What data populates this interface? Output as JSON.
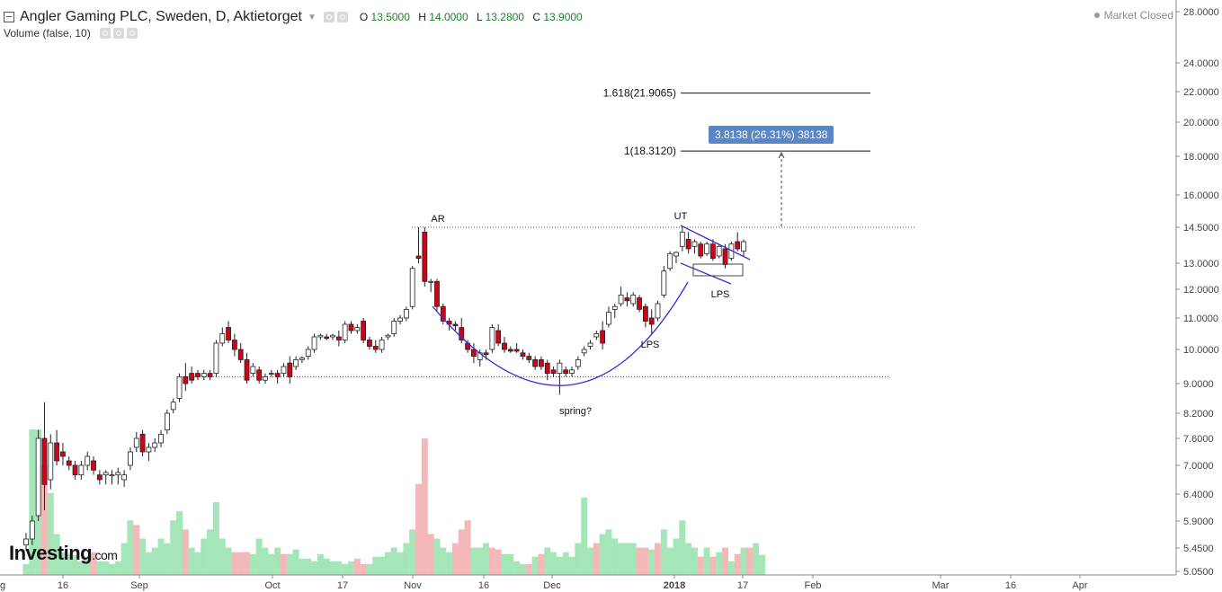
{
  "header": {
    "title": "Angler Gaming PLC, Sweden, D, Aktietorget",
    "ohlc": [
      {
        "label": "O",
        "value": "13.5000"
      },
      {
        "label": "H",
        "value": "14.0000"
      },
      {
        "label": "L",
        "value": "13.2800"
      },
      {
        "label": "C",
        "value": "13.9000"
      }
    ],
    "volume_label": "Volume (false, 10)",
    "status": "Market Closed"
  },
  "logo": {
    "name": "Investing",
    "suffix": ".com"
  },
  "colors": {
    "up": "#ffffff",
    "down": "#d0021b",
    "up_volume": "#a5e6b8",
    "down_volume": "#f5b8b8",
    "curve": "#3d2bd6",
    "badge": "#5b86c5"
  },
  "chart_data": {
    "type": "candlestick",
    "y_ticks": [
      "28.0000",
      "24.0000",
      "22.0000",
      "20.0000",
      "18.0000",
      "16.0000",
      "14.5000",
      "13.0000",
      "12.0000",
      "11.0000",
      "10.0000",
      "9.0000",
      "8.2000",
      "7.6000",
      "7.0000",
      "6.4000",
      "5.9000",
      "5.4500",
      "5.0500"
    ],
    "x_ticks": [
      "16",
      "Sep",
      "Oct",
      "17",
      "Nov",
      "16",
      "Dec",
      "2018",
      "17",
      "Feb",
      "Mar",
      "16",
      "Apr"
    ],
    "x_tick_label_first": "g",
    "candles": [
      {
        "o": 5.5,
        "h": 5.7,
        "l": 5.4,
        "c": 5.6
      },
      {
        "o": 5.6,
        "h": 6.0,
        "l": 5.5,
        "c": 5.9
      },
      {
        "o": 6.0,
        "h": 7.8,
        "l": 5.9,
        "c": 7.6
      },
      {
        "o": 7.6,
        "h": 8.5,
        "l": 6.1,
        "c": 6.6
      },
      {
        "o": 6.7,
        "h": 7.7,
        "l": 6.5,
        "c": 7.5
      },
      {
        "o": 7.5,
        "h": 7.8,
        "l": 7.0,
        "c": 7.1
      },
      {
        "o": 7.3,
        "h": 7.5,
        "l": 7.0,
        "c": 7.2
      },
      {
        "o": 7.1,
        "h": 7.2,
        "l": 6.9,
        "c": 7.0
      },
      {
        "o": 7.0,
        "h": 7.1,
        "l": 6.7,
        "c": 6.8
      },
      {
        "o": 6.8,
        "h": 7.1,
        "l": 6.7,
        "c": 7.0
      },
      {
        "o": 7.0,
        "h": 7.3,
        "l": 6.9,
        "c": 7.2
      },
      {
        "o": 7.1,
        "h": 7.2,
        "l": 6.8,
        "c": 6.9
      },
      {
        "o": 6.8,
        "h": 6.9,
        "l": 6.6,
        "c": 6.7
      },
      {
        "o": 6.8,
        "h": 6.9,
        "l": 6.6,
        "c": 6.85
      },
      {
        "o": 6.8,
        "h": 6.9,
        "l": 6.6,
        "c": 6.8
      },
      {
        "o": 6.8,
        "h": 6.95,
        "l": 6.6,
        "c": 6.85
      },
      {
        "o": 6.7,
        "h": 6.9,
        "l": 6.55,
        "c": 6.8
      },
      {
        "o": 7.0,
        "h": 7.4,
        "l": 6.9,
        "c": 7.3
      },
      {
        "o": 7.4,
        "h": 7.75,
        "l": 7.3,
        "c": 7.6
      },
      {
        "o": 7.7,
        "h": 7.8,
        "l": 7.2,
        "c": 7.3
      },
      {
        "o": 7.3,
        "h": 7.5,
        "l": 7.1,
        "c": 7.4
      },
      {
        "o": 7.4,
        "h": 7.6,
        "l": 7.3,
        "c": 7.5
      },
      {
        "o": 7.5,
        "h": 7.8,
        "l": 7.4,
        "c": 7.7
      },
      {
        "o": 7.8,
        "h": 8.3,
        "l": 7.7,
        "c": 8.2
      },
      {
        "o": 8.3,
        "h": 8.6,
        "l": 8.2,
        "c": 8.5
      },
      {
        "o": 8.6,
        "h": 9.3,
        "l": 8.5,
        "c": 9.2
      },
      {
        "o": 9.2,
        "h": 9.6,
        "l": 8.8,
        "c": 9.0
      },
      {
        "o": 9.3,
        "h": 9.5,
        "l": 9.0,
        "c": 9.1
      },
      {
        "o": 9.3,
        "h": 9.4,
        "l": 9.1,
        "c": 9.2
      },
      {
        "o": 9.2,
        "h": 9.4,
        "l": 9.1,
        "c": 9.3
      },
      {
        "o": 9.3,
        "h": 9.4,
        "l": 9.1,
        "c": 9.2
      },
      {
        "o": 9.3,
        "h": 10.3,
        "l": 9.2,
        "c": 10.2
      },
      {
        "o": 10.2,
        "h": 10.7,
        "l": 10.1,
        "c": 10.5
      },
      {
        "o": 10.7,
        "h": 10.9,
        "l": 10.2,
        "c": 10.3
      },
      {
        "o": 10.3,
        "h": 10.5,
        "l": 9.8,
        "c": 10.0
      },
      {
        "o": 10.0,
        "h": 10.2,
        "l": 9.6,
        "c": 9.7
      },
      {
        "o": 9.7,
        "h": 9.9,
        "l": 9.0,
        "c": 9.1
      },
      {
        "o": 9.3,
        "h": 9.6,
        "l": 9.2,
        "c": 9.5
      },
      {
        "o": 9.4,
        "h": 9.5,
        "l": 9.0,
        "c": 9.1
      },
      {
        "o": 9.1,
        "h": 9.3,
        "l": 9.0,
        "c": 9.2
      },
      {
        "o": 9.3,
        "h": 9.4,
        "l": 9.2,
        "c": 9.3
      },
      {
        "o": 9.3,
        "h": 9.4,
        "l": 9.0,
        "c": 9.2
      },
      {
        "o": 9.3,
        "h": 9.6,
        "l": 9.2,
        "c": 9.5
      },
      {
        "o": 9.6,
        "h": 9.8,
        "l": 9.0,
        "c": 9.2
      },
      {
        "o": 9.5,
        "h": 9.8,
        "l": 9.4,
        "c": 9.7
      },
      {
        "o": 9.7,
        "h": 9.8,
        "l": 9.6,
        "c": 9.75
      },
      {
        "o": 9.8,
        "h": 10.1,
        "l": 9.7,
        "c": 10.0
      },
      {
        "o": 10.0,
        "h": 10.5,
        "l": 9.9,
        "c": 10.4
      },
      {
        "o": 10.4,
        "h": 10.5,
        "l": 10.3,
        "c": 10.45
      },
      {
        "o": 10.4,
        "h": 10.5,
        "l": 10.3,
        "c": 10.35
      },
      {
        "o": 10.4,
        "h": 10.5,
        "l": 10.3,
        "c": 10.45
      },
      {
        "o": 10.4,
        "h": 10.6,
        "l": 10.1,
        "c": 10.3
      },
      {
        "o": 10.3,
        "h": 10.9,
        "l": 10.2,
        "c": 10.8
      },
      {
        "o": 10.8,
        "h": 10.9,
        "l": 10.5,
        "c": 10.6
      },
      {
        "o": 10.6,
        "h": 10.8,
        "l": 10.5,
        "c": 10.7
      },
      {
        "o": 10.9,
        "h": 11.0,
        "l": 10.2,
        "c": 10.3
      },
      {
        "o": 10.3,
        "h": 10.4,
        "l": 10.0,
        "c": 10.1
      },
      {
        "o": 10.1,
        "h": 10.3,
        "l": 9.9,
        "c": 10.0
      },
      {
        "o": 10.0,
        "h": 10.4,
        "l": 9.9,
        "c": 10.3
      },
      {
        "o": 10.4,
        "h": 10.5,
        "l": 10.3,
        "c": 10.45
      },
      {
        "o": 10.5,
        "h": 11.0,
        "l": 10.4,
        "c": 10.9
      },
      {
        "o": 10.9,
        "h": 11.1,
        "l": 10.8,
        "c": 11.0
      },
      {
        "o": 11.0,
        "h": 11.4,
        "l": 10.9,
        "c": 11.3
      },
      {
        "o": 11.4,
        "h": 12.9,
        "l": 11.3,
        "c": 12.8
      },
      {
        "o": 13.3,
        "h": 14.5,
        "l": 13.0,
        "c": 13.2
      },
      {
        "o": 14.3,
        "h": 14.5,
        "l": 12.1,
        "c": 12.3
      },
      {
        "o": 12.3,
        "h": 12.4,
        "l": 11.9,
        "c": 12.3
      },
      {
        "o": 12.3,
        "h": 12.4,
        "l": 11.2,
        "c": 11.4
      },
      {
        "o": 11.4,
        "h": 11.5,
        "l": 10.8,
        "c": 10.9
      },
      {
        "o": 10.9,
        "h": 11.0,
        "l": 10.6,
        "c": 10.8
      },
      {
        "o": 10.8,
        "h": 10.9,
        "l": 10.6,
        "c": 10.75
      },
      {
        "o": 10.7,
        "h": 11.0,
        "l": 10.2,
        "c": 10.3
      },
      {
        "o": 10.2,
        "h": 10.3,
        "l": 9.9,
        "c": 10.0
      },
      {
        "o": 10.0,
        "h": 10.2,
        "l": 9.6,
        "c": 9.8
      },
      {
        "o": 9.7,
        "h": 10.0,
        "l": 9.5,
        "c": 9.9
      },
      {
        "o": 9.9,
        "h": 10.0,
        "l": 9.7,
        "c": 9.85
      },
      {
        "o": 10.0,
        "h": 10.8,
        "l": 9.9,
        "c": 10.7
      },
      {
        "o": 10.6,
        "h": 10.8,
        "l": 10.1,
        "c": 10.2
      },
      {
        "o": 10.2,
        "h": 10.4,
        "l": 9.9,
        "c": 10.0
      },
      {
        "o": 10.0,
        "h": 10.1,
        "l": 9.9,
        "c": 9.95
      },
      {
        "o": 10.0,
        "h": 10.2,
        "l": 9.9,
        "c": 9.95
      },
      {
        "o": 9.9,
        "h": 10.0,
        "l": 9.7,
        "c": 9.8
      },
      {
        "o": 9.8,
        "h": 9.9,
        "l": 9.6,
        "c": 9.7
      },
      {
        "o": 9.7,
        "h": 9.8,
        "l": 9.4,
        "c": 9.5
      },
      {
        "o": 9.7,
        "h": 9.8,
        "l": 9.4,
        "c": 9.5
      },
      {
        "o": 9.6,
        "h": 9.7,
        "l": 9.1,
        "c": 9.3
      },
      {
        "o": 9.4,
        "h": 9.5,
        "l": 9.2,
        "c": 9.3
      },
      {
        "o": 9.3,
        "h": 9.7,
        "l": 8.7,
        "c": 9.6
      },
      {
        "o": 9.4,
        "h": 9.5,
        "l": 9.2,
        "c": 9.3
      },
      {
        "o": 9.3,
        "h": 9.5,
        "l": 9.2,
        "c": 9.4
      },
      {
        "o": 9.5,
        "h": 9.8,
        "l": 9.4,
        "c": 9.7
      },
      {
        "o": 9.9,
        "h": 10.1,
        "l": 9.8,
        "c": 10.0
      },
      {
        "o": 10.1,
        "h": 10.3,
        "l": 10.0,
        "c": 10.2
      },
      {
        "o": 10.4,
        "h": 10.6,
        "l": 10.3,
        "c": 10.5
      },
      {
        "o": 10.6,
        "h": 10.9,
        "l": 10.0,
        "c": 10.2
      },
      {
        "o": 10.8,
        "h": 11.4,
        "l": 10.7,
        "c": 11.2
      },
      {
        "o": 11.3,
        "h": 11.5,
        "l": 11.0,
        "c": 11.4
      },
      {
        "o": 11.5,
        "h": 12.1,
        "l": 11.4,
        "c": 11.8
      },
      {
        "o": 11.7,
        "h": 11.9,
        "l": 11.4,
        "c": 11.6
      },
      {
        "o": 11.5,
        "h": 11.9,
        "l": 11.4,
        "c": 11.8
      },
      {
        "o": 11.7,
        "h": 11.8,
        "l": 11.2,
        "c": 11.3
      },
      {
        "o": 11.4,
        "h": 11.5,
        "l": 10.7,
        "c": 10.9
      },
      {
        "o": 11.0,
        "h": 11.3,
        "l": 10.5,
        "c": 10.8
      },
      {
        "o": 11.0,
        "h": 11.6,
        "l": 10.9,
        "c": 11.5
      },
      {
        "o": 11.8,
        "h": 12.9,
        "l": 11.7,
        "c": 12.7
      },
      {
        "o": 12.8,
        "h": 13.5,
        "l": 12.7,
        "c": 13.4
      },
      {
        "o": 13.3,
        "h": 13.5,
        "l": 13.0,
        "c": 13.45
      },
      {
        "o": 13.7,
        "h": 14.5,
        "l": 13.5,
        "c": 14.3
      },
      {
        "o": 14.0,
        "h": 14.3,
        "l": 13.4,
        "c": 13.6
      },
      {
        "o": 13.7,
        "h": 14.0,
        "l": 13.4,
        "c": 13.9
      },
      {
        "o": 13.8,
        "h": 13.9,
        "l": 13.2,
        "c": 13.3
      },
      {
        "o": 13.4,
        "h": 13.9,
        "l": 13.3,
        "c": 13.8
      },
      {
        "o": 13.8,
        "h": 14.0,
        "l": 13.1,
        "c": 13.2
      },
      {
        "o": 13.3,
        "h": 13.8,
        "l": 13.2,
        "c": 13.7
      },
      {
        "o": 13.6,
        "h": 13.8,
        "l": 12.8,
        "c": 12.95
      },
      {
        "o": 13.2,
        "h": 13.9,
        "l": 13.1,
        "c": 13.8
      },
      {
        "o": 13.9,
        "h": 14.3,
        "l": 13.5,
        "c": 13.6
      },
      {
        "o": 13.5,
        "h": 14.0,
        "l": 13.28,
        "c": 13.9
      }
    ],
    "volumes": [
      1.2,
      16,
      16,
      12,
      9,
      4.5,
      2.5,
      2.3,
      2.2,
      1.5,
      2,
      2.5,
      1.5,
      1.5,
      1.2,
      1.5,
      3.5,
      6,
      5.5,
      4,
      2.5,
      3,
      4,
      3.5,
      6,
      7,
      5,
      3,
      2.5,
      4,
      5,
      8,
      4,
      3,
      2.5,
      2.5,
      2.5,
      2.3,
      4,
      3,
      2.3,
      3,
      2.3,
      2.3,
      2.8,
      1.8,
      1.8,
      1.5,
      2.3,
      1.8,
      1.5,
      1.5,
      1.2,
      1.5,
      1.8,
      1.2,
      1.2,
      2,
      2,
      2.5,
      3,
      2.5,
      3.5,
      5,
      10,
      15,
      4.5,
      4,
      3,
      2.5,
      3.5,
      5,
      6,
      3,
      3,
      3.5,
      3,
      2.8,
      2.3,
      2.3,
      1.5,
      1.2,
      1.2,
      2,
      2.3,
      3,
      2.5,
      2,
      2.5,
      2,
      3.5,
      8.5,
      3,
      3.5,
      4.5,
      5,
      4,
      3.5,
      3.5,
      3.5,
      3,
      3,
      2.8,
      3.5,
      5,
      3,
      4,
      6,
      3.5,
      3,
      2,
      3,
      2,
      2.5,
      3,
      1.5,
      2.3,
      3,
      3,
      3.5,
      2.2
    ],
    "volume_colors_down": [
      3,
      11,
      18,
      26,
      34,
      35,
      36,
      42,
      54,
      55,
      64,
      65,
      66,
      70,
      71,
      72,
      76,
      77,
      82,
      84,
      93,
      100,
      101,
      103,
      110,
      112,
      114,
      116,
      118
    ],
    "horizontal_lines": [
      {
        "price": 14.5,
        "style": "dotted"
      },
      {
        "price": 9.2,
        "style": "dotted"
      }
    ],
    "fib_levels": [
      {
        "label": "1.618(21.9065)",
        "price": 21.9065
      },
      {
        "label": "1(18.3120)",
        "price": 18.312
      }
    ],
    "measure_label": "3.8138 (26.31%) 38138",
    "annotations": [
      "AR",
      "UT",
      "LPS",
      "LPS",
      "spring?"
    ]
  }
}
